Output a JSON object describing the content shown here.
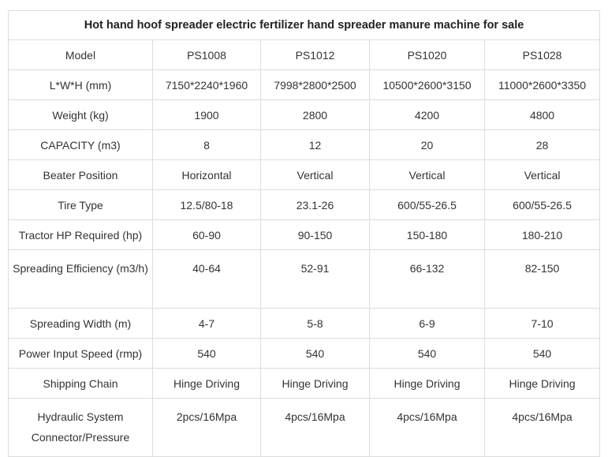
{
  "title": "Hot hand hoof spreader electric fertilizer hand spreader manure machine for sale",
  "columns": [
    "Model",
    "PS1008",
    "PS1012",
    "PS1020",
    "PS1028"
  ],
  "rows": [
    {
      "label": "L*W*H (mm)",
      "values": [
        "7150*2240*1960",
        "7998*2800*2500",
        "10500*2600*3150",
        "11000*2600*3350"
      ]
    },
    {
      "label": "Weight (kg)",
      "values": [
        "1900",
        "2800",
        "4200",
        "4800"
      ]
    },
    {
      "label": "CAPACITY (m3)",
      "values": [
        "8",
        "12",
        "20",
        "28"
      ]
    },
    {
      "label": "Beater Position",
      "values": [
        "Horizontal",
        "Vertical",
        "Vertical",
        "Vertical"
      ]
    },
    {
      "label": "Tire Type",
      "values": [
        "12.5/80-18",
        "23.1-26",
        "600/55-26.5",
        "600/55-26.5"
      ]
    },
    {
      "label": "Tractor HP Required (hp)",
      "values": [
        "60-90",
        "90-150",
        "150-180",
        "180-210"
      ]
    },
    {
      "label": "Spreading Efficiency (m3/h)",
      "values": [
        "40-64",
        "52-91",
        "66-132",
        "82-150"
      ]
    },
    {
      "label": "Spreading Width (m)",
      "values": [
        "4-7",
        "5-8",
        "6-9",
        "7-10"
      ]
    },
    {
      "label": "Power Input Speed (rmp)",
      "values": [
        "540",
        "540",
        "540",
        "540"
      ]
    },
    {
      "label": "Shipping Chain",
      "values": [
        "Hinge Driving",
        "Hinge Driving",
        "Hinge Driving",
        "Hinge Driving"
      ]
    },
    {
      "label": "Hydraulic System Connector/Pressure",
      "values": [
        "2pcs/16Mpa",
        "4pcs/16Mpa",
        "4pcs/16Mpa",
        "4pcs/16Mpa"
      ]
    }
  ]
}
